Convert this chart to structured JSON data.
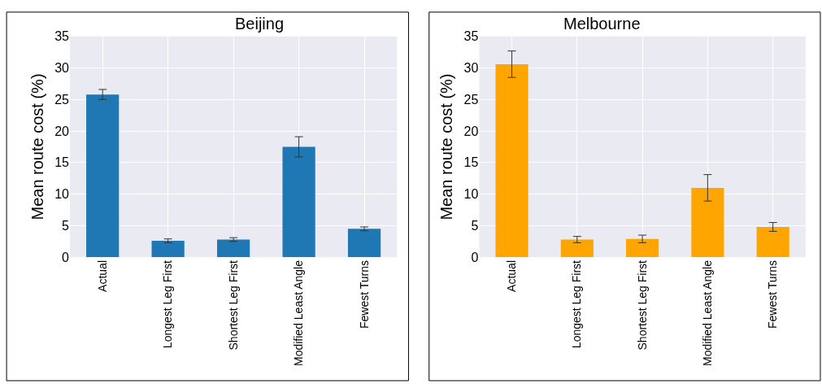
{
  "chart_data": [
    {
      "type": "bar",
      "title": "Beijing",
      "ylabel": "Mean route cost (%)",
      "categories": [
        "Actual",
        "Longest Leg First",
        "Shortest Leg First",
        "Modified Least Angle",
        "Fewest Turns"
      ],
      "values": [
        25.8,
        2.6,
        2.8,
        17.5,
        4.5
      ],
      "errors": [
        0.8,
        0.3,
        0.3,
        1.6,
        0.3
      ],
      "color": "#1f77b4",
      "ylim": [
        0,
        35
      ],
      "yticks": [
        0,
        5,
        10,
        15,
        20,
        25,
        30,
        35
      ],
      "grid": true
    },
    {
      "type": "bar",
      "title": "Melbourne",
      "ylabel": "Mean route cost (%)",
      "categories": [
        "Actual",
        "Longest Leg First",
        "Shortest Leg First",
        "Modified Least Angle",
        "Fewest Turns"
      ],
      "values": [
        30.6,
        2.8,
        2.9,
        11.0,
        4.8
      ],
      "errors": [
        2.1,
        0.5,
        0.6,
        2.1,
        0.7
      ],
      "color": "#ffa500",
      "ylim": [
        0,
        35
      ],
      "yticks": [
        0,
        5,
        10,
        15,
        20,
        25,
        30,
        35
      ],
      "grid": true
    }
  ]
}
